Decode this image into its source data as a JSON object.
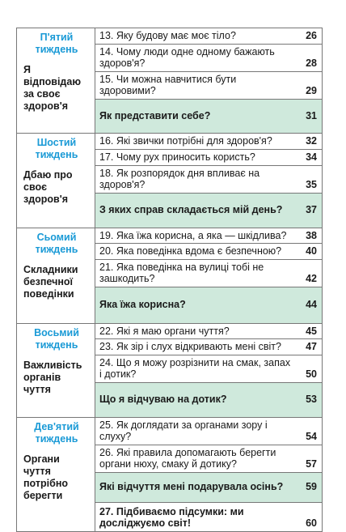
{
  "weeks": [
    {
      "name": "П'ятий тиждень",
      "topic": "Я відповідаю за своє здоров'я",
      "lessons": [
        {
          "text": "13. Яку будову має моє тіло?",
          "page": "26"
        },
        {
          "text": "14. Чому люди одне одному бажають здоров'я?",
          "page": "28"
        },
        {
          "text": "15. Чи можна навчитися бути здоровими?",
          "page": "29"
        },
        {
          "text": "Як представити себе?",
          "page": "31",
          "summary": true
        }
      ]
    },
    {
      "name": "Шостий тиждень",
      "topic": "Дбаю про своє здоров'я",
      "lessons": [
        {
          "text": "16. Які звички потрібні для здоров'я?",
          "page": "32"
        },
        {
          "text": "17. Чому рух приносить користь?",
          "page": "34"
        },
        {
          "text": "18. Як розпорядок дня впливає на здоров'я?",
          "page": "35"
        },
        {
          "text": "З яких справ складається мій день?",
          "page": "37",
          "summary": true
        }
      ]
    },
    {
      "name": "Сьомий тиждень",
      "topic": "Складники безпечної поведінки",
      "lessons": [
        {
          "text": "19. Яка їжа корисна, а яка — шкідлива?",
          "page": "38"
        },
        {
          "text": "20. Яка поведінка вдома є безпечною?",
          "page": "40"
        },
        {
          "text": "21. Яка поведінка на вулиці тобі не зашкодить?",
          "page": "42"
        },
        {
          "text": "Яка їжа корисна?",
          "page": "44",
          "summary": true
        }
      ]
    },
    {
      "name": "Восьмий тиждень",
      "topic": "Важливість органів чуття",
      "lessons": [
        {
          "text": "22. Які я маю органи чуття?",
          "page": "45"
        },
        {
          "text": "23. Як зір і слух відкривають мені світ?",
          "page": "47"
        },
        {
          "text": "24. Що я можу розрізнити на смак, запах і дотик?",
          "page": "50"
        },
        {
          "text": "Що я відчуваю на дотик?",
          "page": "53",
          "summary": true
        }
      ]
    },
    {
      "name": "Дев'ятий тиждень",
      "topic": "Органи чуття потрібно берегти",
      "lessons": [
        {
          "text": "25. Як доглядати за органами зору і слуху?",
          "page": "54"
        },
        {
          "text": "26. Які правила допомагають берегти органи нюху, смаку й дотику?",
          "page": "57"
        },
        {
          "text": "Які відчуття мені подарувала осінь?",
          "page": "59",
          "summary": true
        },
        {
          "text": "27. Підбиваємо підсумки: ми досліджуємо світ!",
          "page": "60",
          "bold": true
        }
      ]
    }
  ]
}
